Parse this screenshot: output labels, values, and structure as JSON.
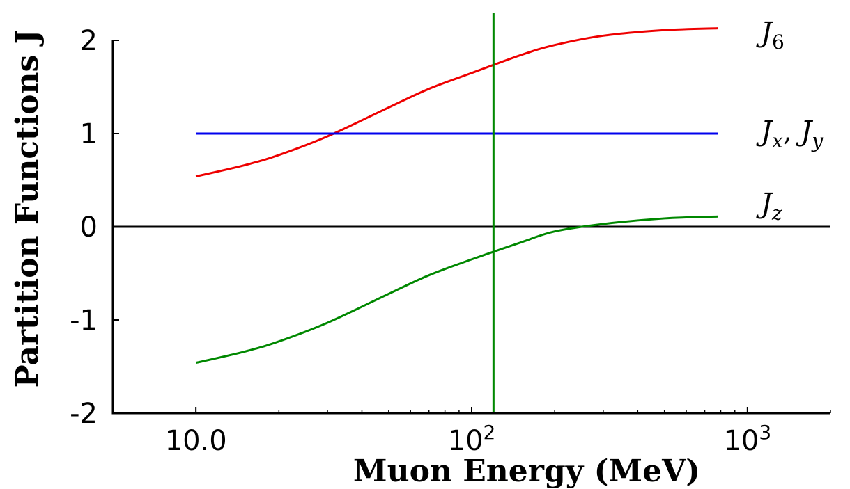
{
  "chart_data": {
    "type": "line",
    "xscale": "log",
    "xlabel": "Muon Energy (MeV)",
    "ylabel": "Partition Functions J",
    "xlim": [
      5,
      2000
    ],
    "ylim": [
      -2,
      2.3
    ],
    "x_ticks": [
      {
        "value": 10,
        "label": "10.0",
        "exp": ""
      },
      {
        "value": 100,
        "label": "10",
        "exp": "2"
      },
      {
        "value": 1000,
        "label": "10",
        "exp": "3"
      }
    ],
    "y_ticks": [
      {
        "value": 2,
        "label": "2"
      },
      {
        "value": 1,
        "label": "1"
      },
      {
        "value": 0,
        "label": "0"
      },
      {
        "value": -1,
        "label": "-1"
      },
      {
        "value": -2,
        "label": "-2"
      }
    ],
    "grid": false,
    "zero_line": true,
    "vertical_marker": {
      "x": 120,
      "color": "#008800"
    },
    "series": [
      {
        "name": "J",
        "sub": "6",
        "sub2": "",
        "color": "#ee0000",
        "x": [
          10,
          15,
          20,
          30,
          50,
          70,
          100,
          150,
          200,
          300,
          500,
          780
        ],
        "y": [
          0.54,
          0.66,
          0.77,
          0.97,
          1.28,
          1.48,
          1.65,
          1.84,
          1.95,
          2.05,
          2.11,
          2.13
        ]
      },
      {
        "name": "J",
        "sub": "x",
        "sub2": "y",
        "color": "#0000ee",
        "x": [
          10,
          780
        ],
        "y": [
          1.0,
          1.0
        ]
      },
      {
        "name": "J",
        "sub": "z",
        "sub2": "",
        "color": "#008800",
        "x": [
          10,
          15,
          20,
          30,
          50,
          70,
          100,
          150,
          200,
          300,
          500,
          780
        ],
        "y": [
          -1.46,
          -1.34,
          -1.23,
          -1.03,
          -0.72,
          -0.52,
          -0.35,
          -0.17,
          -0.05,
          0.03,
          0.09,
          0.11
        ]
      }
    ]
  }
}
